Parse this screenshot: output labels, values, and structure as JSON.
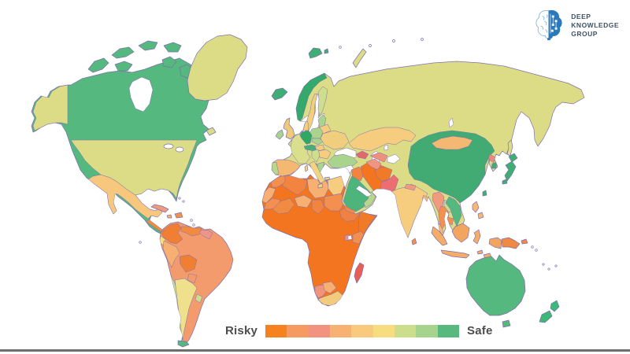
{
  "page": {
    "background": "#FFFFFF",
    "bottom_line_color": "#6E6E6E"
  },
  "logo": {
    "text_lines": [
      "DEEP",
      "KNOWLEDGE",
      "GROUP"
    ],
    "text_color": "#3D5266",
    "brain_left_color": "#8FBCDF",
    "brain_right_color": "#2A79BD"
  },
  "legend": {
    "risky_label": "Risky",
    "safe_label": "Safe",
    "label_color": "#4D4D4D",
    "colors": [
      "#F6821F",
      "#F59B62",
      "#F1937F",
      "#F7B273",
      "#F9C97E",
      "#F8DC80",
      "#CCDE8B",
      "#A6D38E",
      "#58B87E"
    ]
  },
  "map": {
    "stroke_color": "#7E6FAE",
    "sea_color": "#FFFFFF",
    "regions": {
      "sea": "#FFFFFF",
      "greenland": "#DCDC86",
      "canadian_arctic": "#55B87E",
      "canada": "#55B87E",
      "alaska": "#DCDC86",
      "usa": "#DCDC86",
      "newfoundland": "#DCDC86",
      "mexico": "#F8C77E",
      "central_america": "#F28B42",
      "cuba": "#F29A80",
      "jamaica": "#F8B072",
      "hispaniola": "#F4904F",
      "colombia": "#F07F33",
      "venezuela": "#F28B42",
      "guyana_suriname": "#EF9489",
      "ecuador": "#F8DC80",
      "peru": "#F8B072",
      "brazil": "#F49B6E",
      "bolivia": "#F07F33",
      "paraguay": "#F49B6E",
      "chile": "#CDDE8C",
      "argentina": "#EFE08C",
      "uruguay": "#CDDE8C",
      "tierra_del_fuego": "#55B87E",
      "iceland": "#3FAE75",
      "svalbard": "#3FAE75",
      "norway": "#35A96B",
      "sweden": "#F2CF7D",
      "finland": "#CDDE8C",
      "denmark": "#F2CF7D",
      "uk": "#EECB79",
      "ireland": "#A8D48D",
      "france": "#D9DF8C",
      "benelux": "#A8D48D",
      "germany": "#2FA864",
      "poland": "#A8D48D",
      "czech_slovakia": "#A8D48D",
      "switzerland_austria": "#45B075",
      "hungary": "#F6CC7E",
      "italy": "#F2D37E",
      "corsica_sardinia": "#F2D37E",
      "sicily": "#F2D37E",
      "spain": "#F5B873",
      "portugal": "#B8D88C",
      "baltics": "#A8D48D",
      "belarus": "#F6CC7E",
      "ukraine": "#F0CE7E",
      "romania": "#F6CC7E",
      "balkans": "#CDDE8C",
      "greece": "#A8D48D",
      "crete": "#DCDC86",
      "russia": "#DCDC86",
      "novaya_zemlya": "#DCDC86",
      "sakhalin": "#DCDC86",
      "turkey": "#A8D48D",
      "caucasus": "#E06A6A",
      "syria": "#FFFFFF",
      "iraq": "#F2843F",
      "saudi_arabia": "#4DB47C",
      "yemen": "#F08A4A",
      "oman": "#B5D88C",
      "iran": "#F3751F",
      "afghanistan": "#F07A28",
      "pakistan": "#ED6E72",
      "turkmenistan": "#F29580",
      "uzbekistan": "#EF8F7D",
      "kyrgyzstan_tajikistan": "#FFFFFF",
      "kazakhstan": "#F6CC7E",
      "india": "#F6CC7E",
      "nepal": "#F29A80",
      "bangladesh": "#F5B873",
      "sri_lanka": "#F4904F",
      "china": "#41AB73",
      "mongolia": "#F5B873",
      "myanmar": "#F29A80",
      "thailand": "#F4904F",
      "laos": "#C8DC8C",
      "vietnam": "#55B87E",
      "cambodia": "#F4904F",
      "malaysia": "#F7B877",
      "north_korea": "#E98A7A",
      "south_korea": "#3FAE75",
      "japan": "#3FAE75",
      "taiwan": "#3FAE75",
      "philippines": "#F7B877",
      "sumatra": "#F5AC66",
      "java": "#F5AC66",
      "borneo": "#F2A55F",
      "sulawesi": "#F5AC66",
      "timor": "#F5AC66",
      "west_papua": "#F2A55F",
      "papua_new_guinea": "#F08A42",
      "australia": "#55B87E",
      "tasmania": "#55B87E",
      "new_zealand": "#3DB878",
      "africa": "#F3751F",
      "morocco": "#F4904F",
      "western_sahara": "#F8B072",
      "algeria": "#F2843F",
      "libya": "#F8B072",
      "egypt": "#F6CC7E",
      "mauritania": "#F4904F",
      "mali": "#F28B42",
      "niger": "#F8B072",
      "chad": "#F2843F",
      "sudan": "#F4904F",
      "ethiopia": "#F08143",
      "somalia": "#F07A28",
      "kenya": "#F4904F",
      "rwanda_burundi": "#EE8F8F",
      "namibia": "#F2947B",
      "botswana": "#F8B072",
      "south_africa": "#F2CC7C",
      "madagascar": "#E86055",
      "small_island": "#FFFFFF"
    }
  }
}
